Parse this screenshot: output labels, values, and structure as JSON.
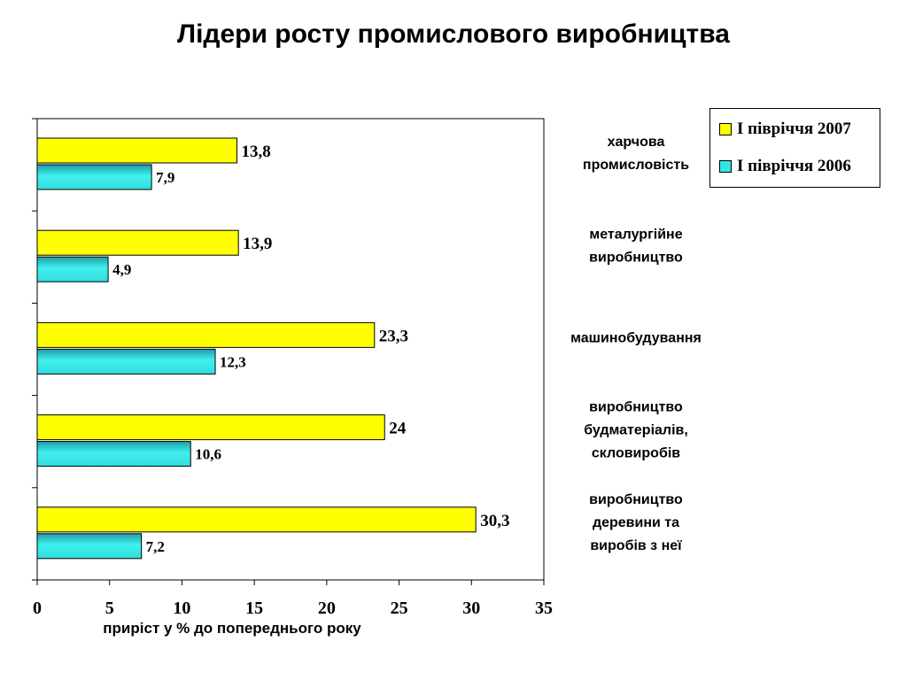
{
  "chart_data": {
    "type": "bar",
    "orientation": "horizontal",
    "title": "Лідери росту промислового виробництва",
    "xlabel": "приріст у %  до попереднього року",
    "xlim": [
      0,
      35
    ],
    "xticks": [
      "0",
      "5",
      "10",
      "15",
      "20",
      "25",
      "30",
      "35"
    ],
    "xtick_values": [
      0,
      5,
      10,
      15,
      20,
      25,
      30,
      35
    ],
    "categories": [
      [
        "харчова",
        "промисловість"
      ],
      [
        "металургійне",
        "виробництво"
      ],
      [
        "машинобудування"
      ],
      [
        "виробництво",
        "будматеріалів,",
        "скловиробів"
      ],
      [
        "виробництво",
        "деревини та",
        "виробів з неї"
      ]
    ],
    "series": [
      {
        "name": "І півріччя 2007",
        "values": [
          13.8,
          13.9,
          23.3,
          24,
          30.3
        ],
        "labels": [
          "13,8",
          "13,9",
          "23,3",
          "24",
          "30,3"
        ],
        "color": "#ffff00"
      },
      {
        "name": "І півріччя 2006",
        "values": [
          7.9,
          4.9,
          12.3,
          10.6,
          7.2
        ],
        "labels": [
          "7,9",
          "4,9",
          "12,3",
          "10,6",
          "7,2"
        ],
        "color": "#33e6e6"
      }
    ],
    "legend_position": "top-right",
    "grid": false
  }
}
